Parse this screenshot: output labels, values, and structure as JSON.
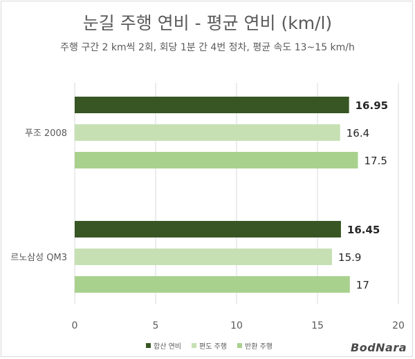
{
  "title": "눈길 주행 연비 - 평균 연비 (km/l)",
  "subtitle": "주행 구간 2 km씩 2회, 회당 1분 간 4번 정차, 평균 속도 13~15 km/h",
  "watermark": "BodNara",
  "chart_data": {
    "type": "bar",
    "orientation": "horizontal",
    "title": "눈길 주행 연비 - 평균 연비 (km/l)",
    "subtitle": "주행 구간 2 km씩 2회, 회당 1분 간 4번 정차, 평균 속도 13~15 km/h",
    "categories": [
      "푸조 2008",
      "르노삼성 QM3"
    ],
    "series": [
      {
        "name": "합산 연비",
        "values": [
          16.95,
          16.45
        ],
        "labels": [
          "16.95",
          "16.45"
        ],
        "color": "#375623",
        "label_bold": true
      },
      {
        "name": "편도 주행",
        "values": [
          16.4,
          15.9
        ],
        "labels": [
          "16.4",
          "15.9"
        ],
        "color": "#c6e0b4",
        "label_bold": false
      },
      {
        "name": "반환 주행",
        "values": [
          17.5,
          17
        ],
        "labels": [
          "17.5",
          "17"
        ],
        "color": "#a9d18e",
        "label_bold": false
      }
    ],
    "xlim": [
      0,
      20
    ],
    "xticks": [
      0,
      5,
      10,
      15,
      20
    ],
    "xtick_labels": [
      "0",
      "5",
      "10",
      "15",
      "20"
    ],
    "xlabel": "",
    "ylabel": "",
    "grid": "vertical",
    "legend_position": "bottom"
  }
}
